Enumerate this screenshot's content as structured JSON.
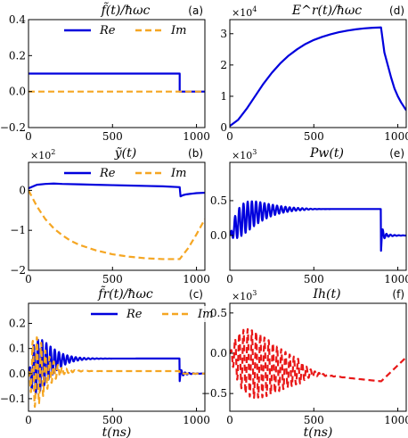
{
  "figure": {
    "xlabel": "t(ns)",
    "colors": {
      "re": "#0000dd",
      "im": "#f5a623",
      "ih": "#e81818",
      "axis": "#000000"
    }
  },
  "chart_data": [
    {
      "id": "a",
      "type": "line",
      "title": "f̃(t)/ħωc",
      "panel_label": "(a)",
      "xlim": [
        0,
        1050
      ],
      "ylim": [
        -0.2,
        0.4
      ],
      "xticks": [
        0,
        500,
        1000
      ],
      "xtick_labels": [
        "0",
        "500",
        "1000"
      ],
      "yticks": [
        -0.2,
        0.0,
        0.2,
        0.4
      ],
      "ytick_labels": [
        "−0.2",
        "0.0",
        "0.2",
        "0.4"
      ],
      "multiplier": "",
      "legend": {
        "placement": "top-center",
        "entries": [
          "Re",
          "Im"
        ]
      },
      "series": [
        {
          "name": "Re",
          "style": "solid",
          "color": "#0000dd",
          "x": [
            0,
            900,
            900,
            1050
          ],
          "y": [
            0.1,
            0.1,
            0.0,
            0.0
          ]
        },
        {
          "name": "Im",
          "style": "dashed",
          "color": "#f5a623",
          "x": [
            0,
            1050
          ],
          "y": [
            0.0,
            0.0
          ]
        }
      ]
    },
    {
      "id": "d",
      "type": "line",
      "title": "E^r(t)/ħωc",
      "panel_label": "(d)",
      "xlim": [
        0,
        1050
      ],
      "ylim": [
        0,
        3.45
      ],
      "xticks": [
        0,
        500,
        1000
      ],
      "xtick_labels": [
        "0",
        "500",
        "1000"
      ],
      "yticks": [
        0,
        1,
        2,
        3
      ],
      "ytick_labels": [
        "0",
        "1",
        "2",
        "3"
      ],
      "multiplier": "×10^4",
      "series": [
        {
          "name": "",
          "style": "solid",
          "color": "#0000dd",
          "x": [
            0,
            50,
            100,
            150,
            200,
            250,
            300,
            350,
            400,
            450,
            500,
            550,
            600,
            650,
            700,
            750,
            800,
            850,
            900,
            920,
            940,
            960,
            980,
            1000,
            1020,
            1050
          ],
          "y": [
            0.05,
            0.25,
            0.6,
            1.0,
            1.4,
            1.75,
            2.05,
            2.3,
            2.5,
            2.67,
            2.8,
            2.9,
            2.98,
            3.05,
            3.1,
            3.14,
            3.17,
            3.19,
            3.2,
            2.4,
            2.0,
            1.6,
            1.25,
            1.0,
            0.8,
            0.55
          ]
        }
      ]
    },
    {
      "id": "b",
      "type": "line",
      "title": "ỹ(t)",
      "panel_label": "(b)",
      "xlim": [
        0,
        1050
      ],
      "ylim": [
        -2,
        0.7
      ],
      "xticks": [
        0,
        500,
        1000
      ],
      "xtick_labels": [
        "0",
        "500",
        "1000"
      ],
      "yticks": [
        -2,
        -1,
        0
      ],
      "ytick_labels": [
        "−2",
        "−1",
        "0"
      ],
      "multiplier": "×10^2",
      "legend": {
        "placement": "top-center",
        "entries": [
          "Re",
          "Im"
        ]
      },
      "series": [
        {
          "name": "Re",
          "style": "solid",
          "color": "#0000dd",
          "x": [
            0,
            50,
            100,
            150,
            200,
            300,
            400,
            500,
            600,
            700,
            800,
            900,
            905,
            920,
            940,
            960,
            980,
            1000,
            1050
          ],
          "y": [
            0.05,
            0.14,
            0.16,
            0.17,
            0.16,
            0.15,
            0.14,
            0.13,
            0.12,
            0.11,
            0.1,
            0.08,
            -0.15,
            -0.12,
            -0.1,
            -0.09,
            -0.08,
            -0.07,
            -0.06
          ]
        },
        {
          "name": "Im",
          "style": "dashed",
          "color": "#f5a623",
          "x": [
            0,
            50,
            100,
            150,
            200,
            250,
            300,
            400,
            500,
            600,
            700,
            800,
            900,
            950,
            1000,
            1050
          ],
          "y": [
            0.0,
            -0.4,
            -0.72,
            -0.95,
            -1.12,
            -1.26,
            -1.36,
            -1.5,
            -1.6,
            -1.66,
            -1.7,
            -1.72,
            -1.72,
            -1.45,
            -1.1,
            -0.72
          ]
        }
      ]
    },
    {
      "id": "e",
      "type": "line",
      "title": "Pw(t)",
      "panel_label": "(e)",
      "xlim": [
        0,
        1050
      ],
      "ylim": [
        -0.5,
        1.05
      ],
      "xticks": [
        0,
        500,
        1000
      ],
      "xtick_labels": [
        "0",
        "500",
        "1000"
      ],
      "yticks": [
        0,
        0.5
      ],
      "ytick_labels": [
        "0.0",
        "0.5"
      ],
      "multiplier": "×10^3",
      "series": [
        {
          "name": "",
          "style": "solid",
          "color": "#0000dd",
          "x": [
            0,
            1050
          ],
          "y": [
            0,
            0
          ],
          "synthetic": {
            "kind": "damped-osc",
            "base_end": 0.38,
            "base_rise": 0.004,
            "amp": 0.42,
            "peak_t": 150,
            "decay": 170,
            "period": 25,
            "step_t": 900,
            "post": [
              -0.22,
              0.05,
              0.0
            ]
          }
        }
      ]
    },
    {
      "id": "c",
      "type": "line",
      "title": "f̃r(t)/ħωc",
      "panel_label": "(c)",
      "xlim": [
        0,
        1050
      ],
      "ylim": [
        -0.15,
        0.28
      ],
      "xticks": [
        0,
        500,
        1000
      ],
      "xtick_labels": [
        "0",
        "500",
        "1000"
      ],
      "yticks": [
        -0.1,
        0.0,
        0.1,
        0.2
      ],
      "ytick_labels": [
        "−0.1",
        "0.0",
        "0.1",
        "0.2"
      ],
      "multiplier": "",
      "xlabel": "t(ns)",
      "legend": {
        "placement": "top-right",
        "entries": [
          "Re",
          "Im"
        ]
      },
      "series": [
        {
          "name": "Re",
          "style": "solid",
          "color": "#0000dd",
          "x": [
            0,
            1050
          ],
          "y": [
            0,
            0
          ],
          "synthetic": {
            "kind": "damped-osc",
            "base_end": 0.06,
            "base_rise": 0.004,
            "amp": 0.16,
            "peak_t": 80,
            "decay": 160,
            "period": 25,
            "step_t": 900,
            "post": [
              -0.03,
              0.01,
              0.0
            ]
          }
        },
        {
          "name": "Im",
          "style": "dashed",
          "color": "#f5a623",
          "x": [
            0,
            1050
          ],
          "y": [
            0,
            0
          ],
          "synthetic": {
            "kind": "damped-osc",
            "base_end": 0.01,
            "base_rise": 0.01,
            "amp": 0.2,
            "peak_t": 60,
            "decay": 140,
            "period": 25,
            "phase": 1.57,
            "step_t": 900,
            "post": [
              0.0,
              0.0,
              0.0
            ]
          }
        }
      ]
    },
    {
      "id": "f",
      "type": "line",
      "title": "Ih(t)",
      "panel_label": "(f)",
      "xlim": [
        0,
        1050
      ],
      "ylim": [
        -0.72,
        0.62
      ],
      "xticks": [
        0,
        500,
        1000
      ],
      "xtick_labels": [
        "0",
        "500",
        "1000"
      ],
      "yticks": [
        -0.5,
        0.0,
        0.5
      ],
      "ytick_labels": [
        "−0.5",
        "0.0",
        "0.5"
      ],
      "multiplier": "×10^3",
      "xlabel": "t(ns)",
      "series": [
        {
          "name": "",
          "style": "dashed",
          "color": "#e81818",
          "x": [
            0,
            1050
          ],
          "y": [
            0,
            0
          ],
          "synthetic": {
            "kind": "ih",
            "amp": 0.42,
            "period": 25,
            "peak_t": 130,
            "decay": 170
          }
        }
      ]
    }
  ]
}
